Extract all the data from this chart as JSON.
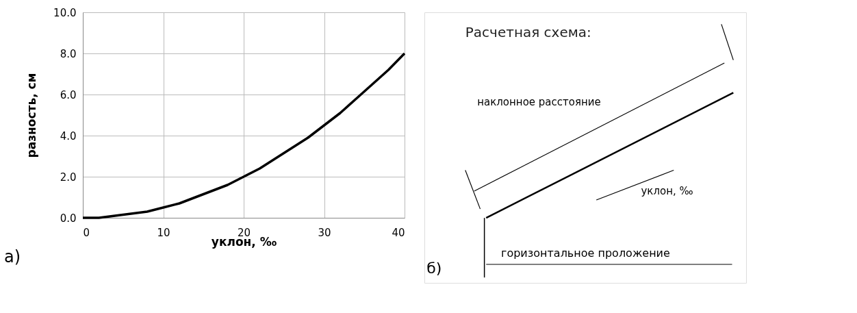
{
  "chart_data": [
    {
      "type": "line",
      "xlabel": "уклон, ‰",
      "ylabel": "разность, см",
      "x": [
        0,
        2,
        4,
        6,
        8,
        10,
        12,
        14,
        16,
        18,
        20,
        22,
        24,
        26,
        28,
        30,
        32,
        34,
        36,
        38,
        40
      ],
      "values": [
        0,
        0,
        0.1,
        0.2,
        0.3,
        0.5,
        0.7,
        1.0,
        1.3,
        1.6,
        2.0,
        2.4,
        2.9,
        3.4,
        3.9,
        4.5,
        5.1,
        5.8,
        6.5,
        7.2,
        8.0
      ],
      "color": "#000000",
      "xlim": [
        0,
        40
      ],
      "xticks": [
        0,
        10,
        20,
        30,
        40
      ],
      "ylim": [
        0,
        10
      ],
      "yticks": [
        {
          "value": 0,
          "label": "0.0"
        },
        {
          "value": 2,
          "label": "2.0"
        },
        {
          "value": 4,
          "label": "4.0"
        },
        {
          "value": 6,
          "label": "6.0"
        },
        {
          "value": 8,
          "label": "8.0"
        },
        {
          "value": 10,
          "label": "10.0"
        }
      ],
      "grid": true,
      "marker": "none",
      "line_style": "solid",
      "annotations": [
        "а)"
      ]
    },
    {
      "type": "other",
      "title": "Расчетная схема:",
      "annotations": [
        "наклонное расстояние",
        "уклон, ‰",
        "горизонтальное проложение",
        "б)"
      ]
    }
  ]
}
